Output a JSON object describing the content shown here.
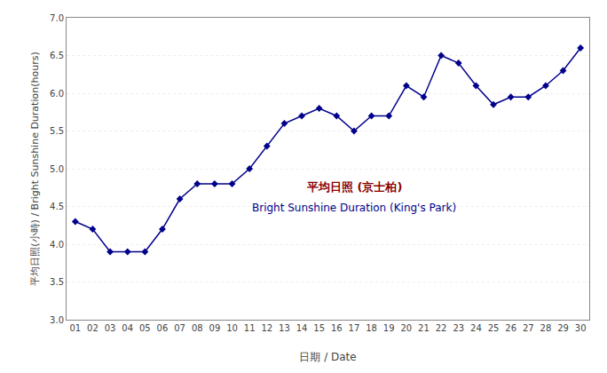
{
  "chart_data": {
    "type": "line",
    "x_label": "日期 / Date",
    "y_label": "平均日照(小時) / Bright Sunshine Duration(hours)",
    "x": [
      1,
      2,
      3,
      4,
      5,
      6,
      7,
      8,
      9,
      10,
      11,
      12,
      13,
      14,
      15,
      16,
      17,
      18,
      19,
      20,
      21,
      22,
      23,
      24,
      25,
      26,
      27,
      28,
      29,
      30
    ],
    "values": [
      4.3,
      4.2,
      3.9,
      3.9,
      3.9,
      4.2,
      4.6,
      4.8,
      4.8,
      4.8,
      5.0,
      5.3,
      5.6,
      5.7,
      5.8,
      5.7,
      5.5,
      5.7,
      5.7,
      6.1,
      5.95,
      6.5,
      6.4,
      6.1,
      5.85,
      5.95,
      5.95,
      6.1,
      6.3,
      6.6
    ],
    "color": "#00008B",
    "marker": "diamond",
    "line_style": "solid",
    "xlim": [
      0.5,
      30.5
    ],
    "xticks": [
      {
        "value": 1,
        "label": "01"
      },
      {
        "value": 2,
        "label": "02"
      },
      {
        "value": 3,
        "label": "03"
      },
      {
        "value": 4,
        "label": "04"
      },
      {
        "value": 5,
        "label": "05"
      },
      {
        "value": 6,
        "label": "06"
      },
      {
        "value": 7,
        "label": "07"
      },
      {
        "value": 8,
        "label": "08"
      },
      {
        "value": 9,
        "label": "09"
      },
      10,
      11,
      12,
      13,
      14,
      15,
      16,
      17,
      18,
      19,
      20,
      21,
      22,
      23,
      24,
      25,
      26,
      27,
      28,
      29,
      30
    ],
    "ylim": [
      3.0,
      7.0
    ],
    "yticks": [
      {
        "value": 3.0,
        "label": "3.0"
      },
      3.5,
      {
        "value": 4.0,
        "label": "4.0"
      },
      4.5,
      {
        "value": 5.0,
        "label": "5.0"
      },
      5.5,
      {
        "value": 6.0,
        "label": "6.0"
      },
      6.5,
      {
        "value": 7.0,
        "label": "7.0"
      }
    ],
    "grid": "y",
    "annotations": [
      {
        "text": "平均日照 (京士柏)",
        "color": "#8B0000"
      },
      {
        "text": "Bright Sunshine Duration (King's Park)",
        "color": "#00008B"
      }
    ]
  }
}
